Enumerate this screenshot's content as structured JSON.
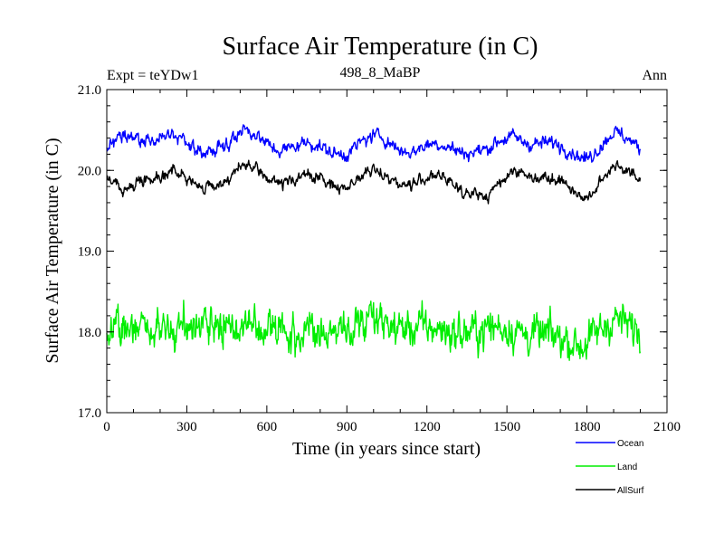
{
  "chart_data": {
    "type": "line",
    "title": "Surface Air Temperature (in C)",
    "subtitle_left": "Expt = teYDw1",
    "subtitle_center": "498_8_MaBP",
    "subtitle_right": "Ann",
    "xlabel": "Time (in years since start)",
    "ylabel": "Surface Air Temperature (in C)",
    "xlim": [
      0,
      2100
    ],
    "ylim": [
      17.0,
      21.0
    ],
    "x_ticks": [
      0,
      300,
      600,
      900,
      1200,
      1500,
      1800,
      2100
    ],
    "x_tick_labels": [
      "0",
      "300",
      "600",
      "900",
      "1200",
      "1500",
      "1800",
      "2100"
    ],
    "y_ticks": [
      17.0,
      18.0,
      19.0,
      20.0,
      21.0
    ],
    "y_tick_labels": [
      "17.0",
      "18.0",
      "19.0",
      "20.0",
      "21.0"
    ],
    "x_range": [
      0,
      2000
    ],
    "series": [
      {
        "name": "Ocean",
        "color": "#0000ff",
        "mean": 20.3,
        "noise": 0.07,
        "bumps": [
          [
            0,
            20.3
          ],
          [
            60,
            20.35
          ],
          [
            150,
            20.4
          ],
          [
            230,
            20.45
          ],
          [
            330,
            20.22
          ],
          [
            520,
            20.45
          ],
          [
            650,
            20.3
          ],
          [
            900,
            20.25
          ],
          [
            1030,
            20.4
          ],
          [
            1150,
            20.25
          ],
          [
            1300,
            20.3
          ],
          [
            1430,
            20.22
          ],
          [
            1530,
            20.45
          ],
          [
            1700,
            20.25
          ],
          [
            1800,
            20.2
          ],
          [
            1900,
            20.42
          ],
          [
            2000,
            20.3
          ]
        ]
      },
      {
        "name": "Land",
        "color": "#00ee00",
        "mean": 18.05,
        "noise": 0.2,
        "bumps": [
          [
            0,
            18.0
          ],
          [
            300,
            18.1
          ],
          [
            500,
            18.05
          ],
          [
            800,
            18.0
          ],
          [
            1030,
            18.1
          ],
          [
            1300,
            18.0
          ],
          [
            1500,
            18.05
          ],
          [
            1780,
            17.85
          ],
          [
            1900,
            18.15
          ],
          [
            2000,
            18.0
          ]
        ]
      },
      {
        "name": "AllSurf",
        "color": "#000000",
        "mean": 19.88,
        "noise": 0.06,
        "bumps": [
          [
            0,
            19.9
          ],
          [
            60,
            19.7
          ],
          [
            150,
            19.95
          ],
          [
            230,
            20.0
          ],
          [
            330,
            19.78
          ],
          [
            520,
            20.0
          ],
          [
            650,
            19.9
          ],
          [
            900,
            19.85
          ],
          [
            1030,
            19.95
          ],
          [
            1150,
            19.85
          ],
          [
            1300,
            19.88
          ],
          [
            1430,
            19.62
          ],
          [
            1530,
            20.05
          ],
          [
            1700,
            19.82
          ],
          [
            1800,
            19.7
          ],
          [
            1900,
            20.02
          ],
          [
            2000,
            19.9
          ]
        ]
      }
    ],
    "legend": [
      "Ocean",
      "Land",
      "AllSurf"
    ],
    "legend_position": "bottom-right"
  }
}
